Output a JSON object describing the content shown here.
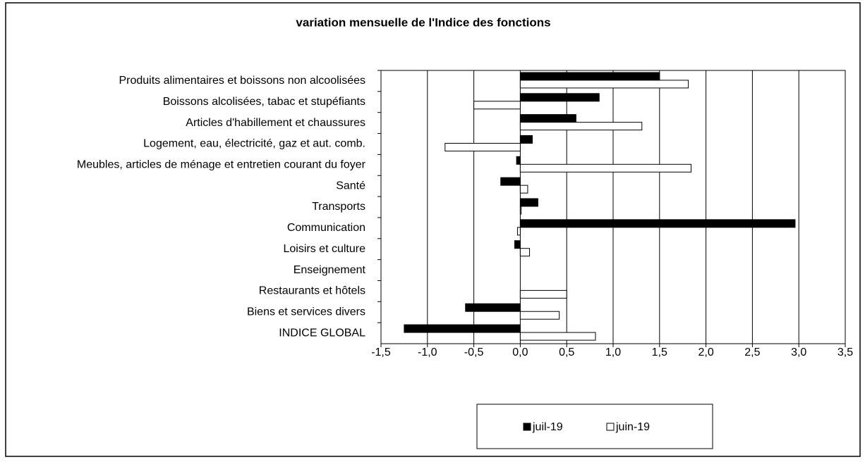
{
  "chart_data": {
    "type": "bar",
    "orientation": "horizontal",
    "title": "variation mensuelle de l'Indice des fonctions",
    "categories": [
      "Produits alimentaires et boissons non alcoolisées",
      "Boissons alcolisées, tabac et stupéfiants",
      "Articles d'habillement et chaussures",
      "Logement, eau, électricité, gaz et aut. comb.",
      "Meubles, articles de ménage et entretien courant du foyer",
      "Santé",
      "Transports",
      "Communication",
      "Loisirs et culture",
      "Enseignement",
      "Restaurants et hôtels",
      "Biens et services divers",
      "INDICE GLOBAL"
    ],
    "series": [
      {
        "name": "juil-19",
        "color": "#000000",
        "values": [
          1.5,
          0.85,
          0.6,
          0.13,
          -0.04,
          -0.21,
          0.19,
          2.96,
          -0.06,
          0,
          0,
          -0.59,
          -1.25
        ]
      },
      {
        "name": "juin-19",
        "color": "#ffffff",
        "values": [
          1.81,
          -0.5,
          1.31,
          -0.81,
          1.84,
          0.08,
          0.01,
          -0.03,
          0.1,
          0,
          0.5,
          0.42,
          0.81
        ]
      }
    ],
    "xlim": [
      -1.5,
      3.5
    ],
    "xticks": [
      {
        "value": -1.5,
        "label": "-1,5"
      },
      {
        "value": -1,
        "label": "-1,0"
      },
      {
        "value": -0.5,
        "label": "-0,5"
      },
      {
        "value": 0,
        "label": "0,0"
      },
      {
        "value": 0.5,
        "label": "0,5"
      },
      {
        "value": 1,
        "label": "1,0"
      },
      {
        "value": 1.5,
        "label": "1,5"
      },
      {
        "value": 2,
        "label": "2,0"
      },
      {
        "value": 2.5,
        "label": "2,5"
      },
      {
        "value": 3,
        "label": "3,0"
      },
      {
        "value": 3.5,
        "label": "3,5"
      }
    ],
    "grid": true,
    "legend": "bottom"
  }
}
